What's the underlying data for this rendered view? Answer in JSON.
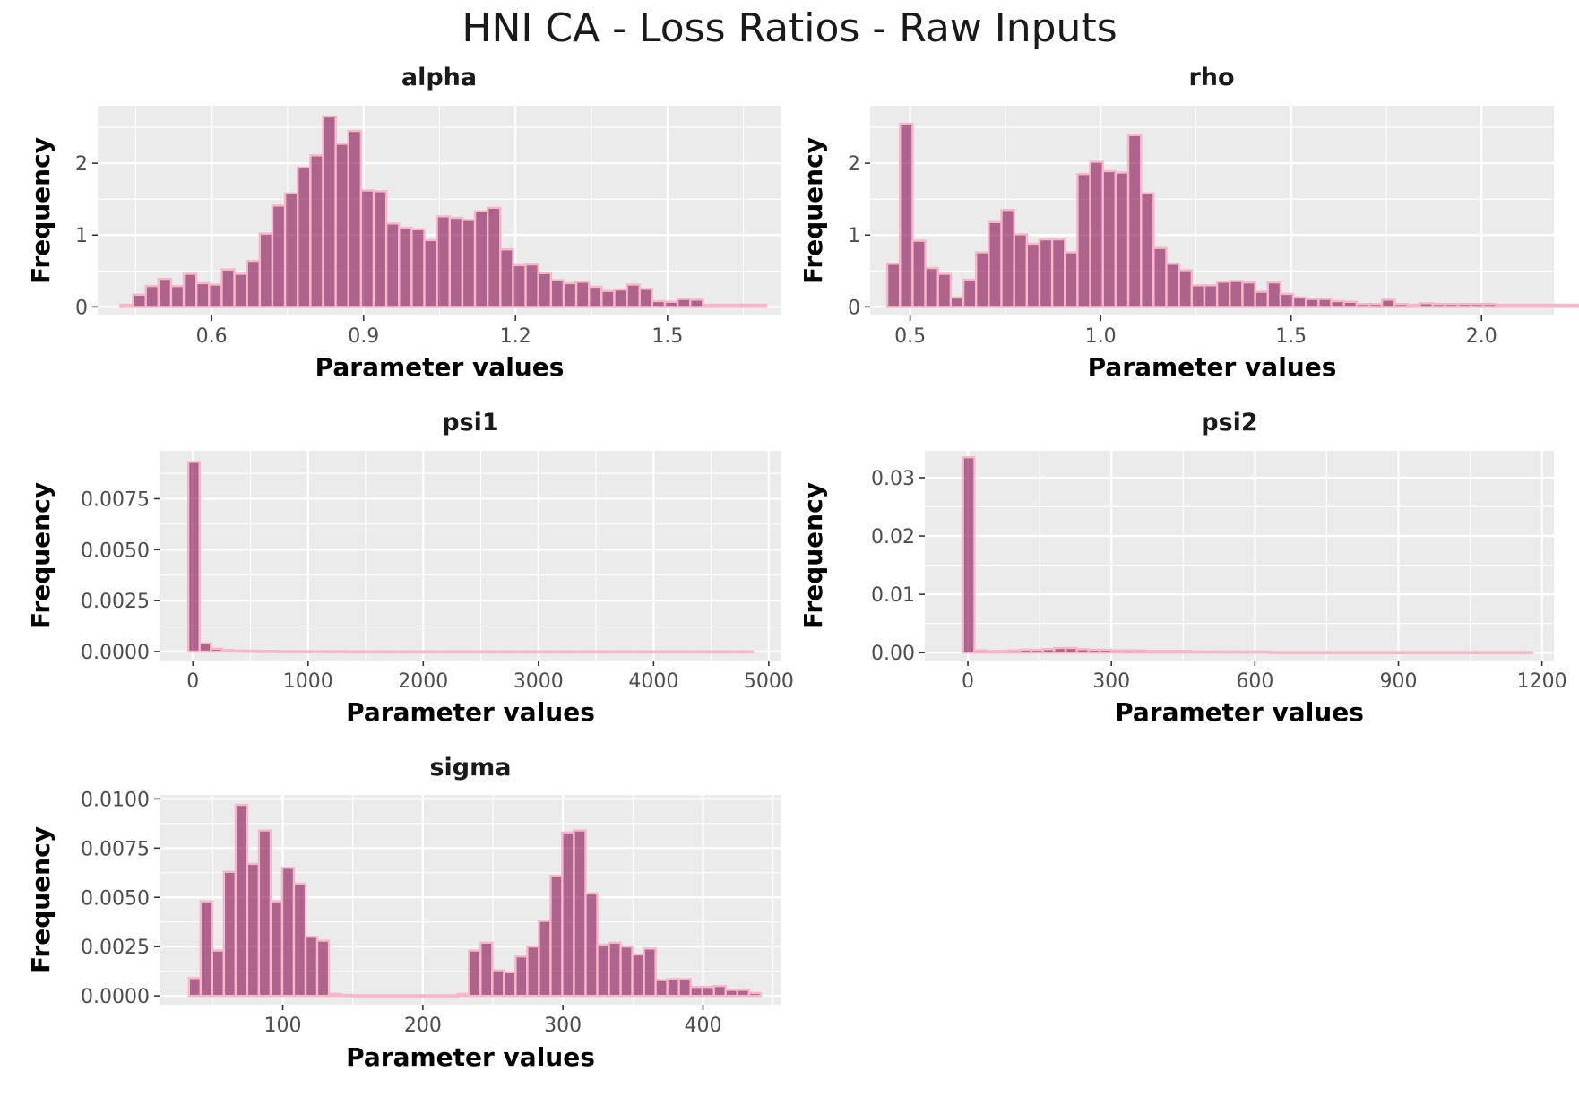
{
  "figure": {
    "title": "HNI CA - Loss Ratios - Raw Inputs",
    "colors": {
      "bar_fill": "#8b2f6a",
      "bar_outline": "#f6b7c8",
      "panel_bg": "#ebebeb",
      "grid": "#ffffff"
    }
  },
  "chart_data": [
    {
      "type": "bar",
      "title": "alpha",
      "xlabel": "Parameter values",
      "ylabel": "Frequency",
      "xlim": [
        0.375,
        1.725
      ],
      "ylim": [
        -0.12,
        2.8
      ],
      "x_ticks": [
        0.6,
        0.9,
        1.2,
        1.5
      ],
      "x_tick_labels": [
        "0.6",
        "0.9",
        "1.2",
        "1.5"
      ],
      "y_ticks": [
        0,
        1,
        2
      ],
      "y_tick_labels": [
        "0",
        "1",
        "2"
      ],
      "bin_start": 0.42,
      "bin_width": 0.025,
      "values": [
        0.03,
        0.17,
        0.29,
        0.39,
        0.29,
        0.46,
        0.33,
        0.31,
        0.52,
        0.46,
        0.64,
        1.02,
        1.41,
        1.58,
        1.94,
        2.11,
        2.65,
        2.27,
        2.45,
        1.62,
        1.61,
        1.16,
        1.1,
        1.08,
        0.93,
        1.26,
        1.24,
        1.21,
        1.33,
        1.38,
        0.8,
        0.58,
        0.59,
        0.47,
        0.37,
        0.33,
        0.35,
        0.28,
        0.22,
        0.24,
        0.31,
        0.25,
        0.08,
        0.07,
        0.11,
        0.1,
        0.03,
        0.03,
        0.03,
        0.03,
        0.03
      ]
    },
    {
      "type": "bar",
      "title": "rho",
      "xlabel": "Parameter values",
      "ylabel": "Frequency",
      "xlim": [
        0.395,
        2.19
      ],
      "ylim": [
        -0.12,
        2.8
      ],
      "x_ticks": [
        0.5,
        1.0,
        1.5,
        2.0
      ],
      "x_tick_labels": [
        "0.5",
        "1.0",
        "1.5",
        "2.0"
      ],
      "y_ticks": [
        0,
        1,
        2
      ],
      "y_tick_labels": [
        "0",
        "1",
        "2"
      ],
      "bin_start": 0.44,
      "bin_width": 0.0333,
      "values": [
        0.6,
        2.55,
        0.92,
        0.54,
        0.46,
        0.13,
        0.38,
        0.76,
        1.18,
        1.35,
        1.01,
        0.88,
        0.94,
        0.94,
        0.76,
        1.85,
        2.02,
        1.89,
        1.87,
        2.39,
        1.58,
        0.82,
        0.6,
        0.51,
        0.3,
        0.3,
        0.35,
        0.36,
        0.34,
        0.21,
        0.34,
        0.18,
        0.13,
        0.11,
        0.11,
        0.08,
        0.07,
        0.04,
        0.04,
        0.1,
        0.04,
        0.03,
        0.05,
        0.04,
        0.04,
        0.04,
        0.04,
        0.04,
        0.03,
        0.03,
        0.03,
        0.03,
        0.03,
        0.03,
        0.03,
        0.03,
        0.03,
        0.03,
        0.02,
        0.02
      ]
    },
    {
      "type": "bar",
      "title": "psi1",
      "xlabel": "Parameter values",
      "ylabel": "Frequency",
      "xlim": [
        -290,
        5110
      ],
      "ylim": [
        -0.00044,
        0.00985
      ],
      "x_ticks": [
        0,
        1000,
        2000,
        3000,
        4000,
        5000
      ],
      "x_tick_labels": [
        "0",
        "1000",
        "2000",
        "3000",
        "4000",
        "5000"
      ],
      "y_ticks": [
        0,
        0.0025,
        0.005,
        0.0075
      ],
      "y_tick_labels": [
        "0.0000",
        "0.0025",
        "0.0050",
        "0.0075"
      ],
      "bin_start": -40,
      "bin_width": 98,
      "values": [
        0.0093,
        0.0004,
        0.00014,
        8e-05,
        5e-05,
        4e-05,
        3e-05,
        3e-05,
        2e-05,
        2e-05,
        2e-05,
        2e-05,
        2e-05,
        2e-05,
        1e-05,
        1e-05,
        1e-05,
        1e-05,
        1e-05,
        1e-05,
        1e-05,
        1e-05,
        1e-05,
        1e-05,
        1e-05,
        1e-05,
        1e-05,
        1e-05,
        1e-05,
        1e-05,
        1e-05,
        1e-05,
        1e-05,
        1e-05,
        1e-05,
        1e-05,
        1e-05,
        1e-05,
        1e-05,
        1e-05,
        1e-05,
        1e-05,
        1e-05,
        1e-05,
        1e-05,
        1e-05,
        1e-05,
        1e-05,
        1e-05,
        1e-05
      ]
    },
    {
      "type": "bar",
      "title": "psi2",
      "xlabel": "Parameter values",
      "ylabel": "Frequency",
      "xlim": [
        -90,
        1225
      ],
      "ylim": [
        -0.00135,
        0.0346
      ],
      "x_ticks": [
        0,
        300,
        600,
        900,
        1200
      ],
      "x_tick_labels": [
        "0",
        "300",
        "600",
        "900",
        "1200"
      ],
      "y_ticks": [
        0,
        0.01,
        0.02,
        0.03
      ],
      "y_tick_labels": [
        "0.00",
        "0.01",
        "0.02",
        "0.03"
      ],
      "bin_start": -10,
      "bin_width": 23.8,
      "values": [
        0.0335,
        0.0004,
        0.0003,
        0.0003,
        0.0004,
        0.0005,
        0.0005,
        0.0006,
        0.0008,
        0.0008,
        0.0006,
        0.0005,
        0.0005,
        0.0004,
        0.0004,
        0.0004,
        0.0003,
        0.0003,
        0.0003,
        0.0003,
        0.0002,
        0.0002,
        0.0002,
        0.0002,
        0.0002,
        0.0002,
        0.0002,
        0.0001,
        0.0001,
        0.0001,
        0.0001,
        0.0001,
        0.0001,
        0.0001,
        0.0001,
        0.0001,
        0.0001,
        0.0001,
        0.0001,
        0.0001,
        0.0001,
        0.0001,
        0.0001,
        0.0001,
        0.0001,
        0.0001,
        0.0001,
        0.0001,
        0.0001,
        0.0001
      ]
    },
    {
      "type": "bar",
      "title": "sigma",
      "xlabel": "Parameter values",
      "ylabel": "Frequency",
      "xlim": [
        12,
        456
      ],
      "ylim": [
        -0.00045,
        0.0102
      ],
      "x_ticks": [
        100,
        200,
        300,
        400
      ],
      "x_tick_labels": [
        "100",
        "200",
        "300",
        "400"
      ],
      "y_ticks": [
        0,
        0.0025,
        0.005,
        0.0075,
        0.01
      ],
      "y_tick_labels": [
        "0.0000",
        "0.0025",
        "0.0050",
        "0.0075",
        "0.0100"
      ],
      "bin_start": 33,
      "bin_width": 8.33,
      "values": [
        0.0009,
        0.0048,
        0.0023,
        0.0063,
        0.0097,
        0.0067,
        0.0084,
        0.0048,
        0.0065,
        0.0057,
        0.003,
        0.0028,
        0.0001,
        5e-05,
        3e-05,
        3e-05,
        3e-05,
        3e-05,
        3e-05,
        3e-05,
        3e-05,
        3e-05,
        3e-05,
        0.0001,
        0.0023,
        0.0027,
        0.0013,
        0.0012,
        0.002,
        0.0025,
        0.0038,
        0.0061,
        0.0083,
        0.0084,
        0.0052,
        0.0026,
        0.0027,
        0.0025,
        0.0021,
        0.0024,
        0.0008,
        0.00085,
        0.00085,
        0.00045,
        0.00045,
        0.0005,
        0.0003,
        0.0003,
        0.00015
      ]
    }
  ]
}
